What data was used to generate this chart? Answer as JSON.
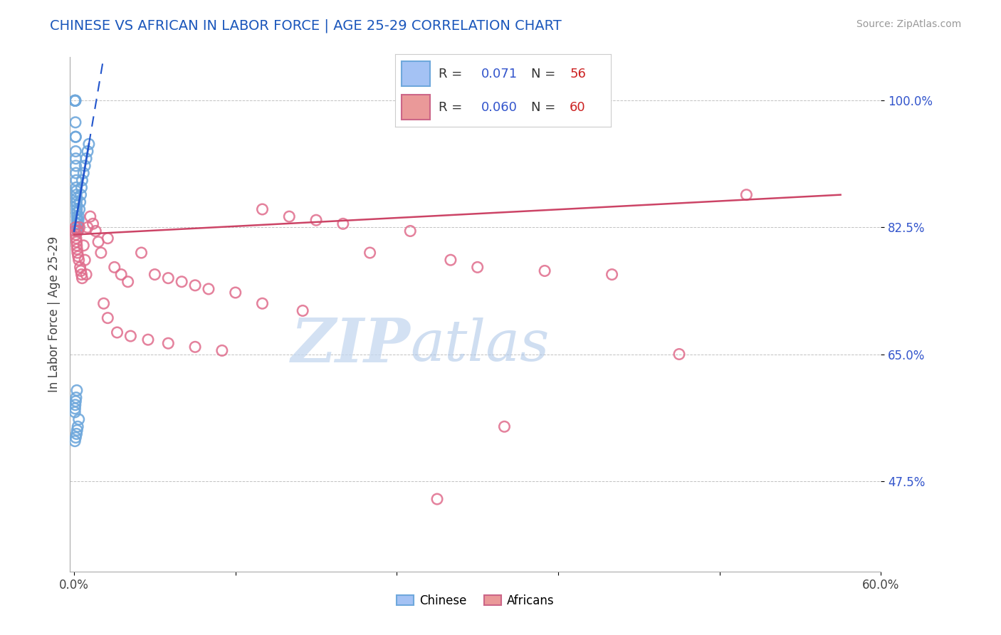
{
  "title": "CHINESE VS AFRICAN IN LABOR FORCE | AGE 25-29 CORRELATION CHART",
  "source": "Source: ZipAtlas.com",
  "ylabel": "In Labor Force | Age 25-29",
  "xlim": [
    -0.3,
    60.0
  ],
  "ylim": [
    35.0,
    106.0
  ],
  "yticks": [
    47.5,
    65.0,
    82.5,
    100.0
  ],
  "ytick_labels": [
    "47.5%",
    "65.0%",
    "82.5%",
    "100.0%"
  ],
  "xtick_labels": [
    "0.0%",
    "",
    "",
    "",
    "",
    "60.0%"
  ],
  "chinese_color": "#6fa8dc",
  "african_color": "#e06c8c",
  "chinese_line_color": "#2255cc",
  "african_line_color": "#cc4466",
  "background_color": "#ffffff",
  "grid_color": "#bbbbbb",
  "title_color": "#1a56bb",
  "watermark_color": "#cce0f5",
  "chinese_x": [
    0.05,
    0.07,
    0.08,
    0.09,
    0.1,
    0.1,
    0.11,
    0.12,
    0.12,
    0.13,
    0.13,
    0.14,
    0.15,
    0.15,
    0.16,
    0.17,
    0.18,
    0.18,
    0.19,
    0.2,
    0.2,
    0.21,
    0.22,
    0.22,
    0.23,
    0.24,
    0.25,
    0.25,
    0.26,
    0.27,
    0.28,
    0.3,
    0.32,
    0.35,
    0.4,
    0.45,
    0.5,
    0.55,
    0.6,
    0.7,
    0.8,
    0.9,
    1.0,
    1.1,
    0.06,
    0.07,
    0.09,
    0.12,
    0.15,
    0.2,
    0.06,
    0.12,
    0.18,
    0.22,
    0.27,
    0.35
  ],
  "chinese_y": [
    100.0,
    100.0,
    100.0,
    100.0,
    100.0,
    97.0,
    95.0,
    95.0,
    93.0,
    92.0,
    91.0,
    90.0,
    89.0,
    88.0,
    87.5,
    87.0,
    86.5,
    86.0,
    85.5,
    85.0,
    84.5,
    84.0,
    83.5,
    83.0,
    82.5,
    82.5,
    82.0,
    83.0,
    82.0,
    82.5,
    83.0,
    82.5,
    83.5,
    84.0,
    85.0,
    86.0,
    87.0,
    88.0,
    89.0,
    90.0,
    91.0,
    92.0,
    93.0,
    94.0,
    57.0,
    57.5,
    58.0,
    58.5,
    59.0,
    60.0,
    53.0,
    53.5,
    54.0,
    54.5,
    55.0,
    56.0
  ],
  "african_x": [
    0.05,
    0.1,
    0.12,
    0.15,
    0.18,
    0.2,
    0.22,
    0.25,
    0.28,
    0.3,
    0.35,
    0.4,
    0.45,
    0.5,
    0.55,
    0.6,
    0.7,
    0.8,
    0.9,
    1.0,
    1.2,
    1.4,
    1.6,
    1.8,
    2.0,
    2.5,
    3.0,
    3.5,
    4.0,
    5.0,
    6.0,
    7.0,
    8.0,
    9.0,
    10.0,
    12.0,
    14.0,
    16.0,
    18.0,
    20.0,
    22.0,
    25.0,
    28.0,
    30.0,
    35.0,
    40.0,
    45.0,
    50.0,
    27.0,
    32.0,
    2.2,
    2.5,
    3.2,
    4.2,
    5.5,
    7.0,
    9.0,
    11.0,
    14.0,
    17.0
  ],
  "african_y": [
    82.0,
    82.5,
    81.5,
    81.0,
    80.5,
    80.0,
    79.5,
    79.0,
    82.0,
    78.5,
    78.0,
    82.5,
    77.0,
    76.5,
    76.0,
    75.5,
    80.0,
    78.0,
    76.0,
    82.5,
    84.0,
    83.0,
    82.0,
    80.5,
    79.0,
    81.0,
    77.0,
    76.0,
    75.0,
    79.0,
    76.0,
    75.5,
    75.0,
    74.5,
    74.0,
    73.5,
    85.0,
    84.0,
    83.5,
    83.0,
    79.0,
    82.0,
    78.0,
    77.0,
    76.5,
    76.0,
    65.0,
    87.0,
    45.0,
    55.0,
    72.0,
    70.0,
    68.0,
    67.5,
    67.0,
    66.5,
    66.0,
    65.5,
    72.0,
    71.0
  ]
}
